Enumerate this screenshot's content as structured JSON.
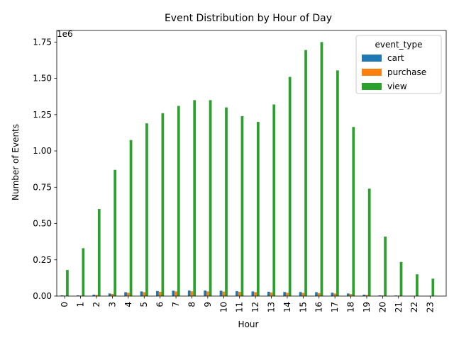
{
  "chart_data": {
    "type": "bar",
    "title": "Event Distribution by Hour of Day",
    "xlabel": "Hour",
    "ylabel": "Number of Events",
    "y_offset_label": "1e6",
    "ylim": [
      0,
      1830000
    ],
    "y_ticks": [
      0,
      250000,
      500000,
      750000,
      1000000,
      1250000,
      1500000,
      1750000
    ],
    "y_tick_labels": [
      "0.00",
      "0.25",
      "0.50",
      "0.75",
      "1.00",
      "1.25",
      "1.50",
      "1.75"
    ],
    "categories": [
      "0",
      "1",
      "2",
      "3",
      "4",
      "5",
      "6",
      "7",
      "8",
      "9",
      "10",
      "11",
      "12",
      "13",
      "14",
      "15",
      "16",
      "17",
      "18",
      "19",
      "20",
      "21",
      "22",
      "23"
    ],
    "legend_title": "event_type",
    "legend_position": "top-right",
    "grid": false,
    "series": [
      {
        "name": "cart",
        "color": "#1f77b4",
        "values": [
          5000,
          5000,
          10000,
          18000,
          27000,
          32000,
          35000,
          37000,
          38000,
          38000,
          37000,
          34000,
          32000,
          30000,
          28000,
          28000,
          27000,
          23000,
          18000,
          10000,
          5000,
          4000,
          2000,
          1000
        ]
      },
      {
        "name": "purchase",
        "color": "#ff7f0e",
        "values": [
          3000,
          3000,
          8000,
          15000,
          23000,
          27000,
          30000,
          32000,
          33000,
          32000,
          31000,
          29000,
          27000,
          25000,
          23000,
          22000,
          21000,
          18000,
          14000,
          8000,
          4000,
          3000,
          1500,
          1000
        ]
      },
      {
        "name": "view",
        "color": "#2ca02c",
        "values": [
          180000,
          330000,
          600000,
          870000,
          1075000,
          1190000,
          1260000,
          1310000,
          1350000,
          1350000,
          1300000,
          1240000,
          1200000,
          1320000,
          1510000,
          1695000,
          1750000,
          1555000,
          1165000,
          740000,
          410000,
          235000,
          150000,
          120000
        ]
      }
    ]
  }
}
